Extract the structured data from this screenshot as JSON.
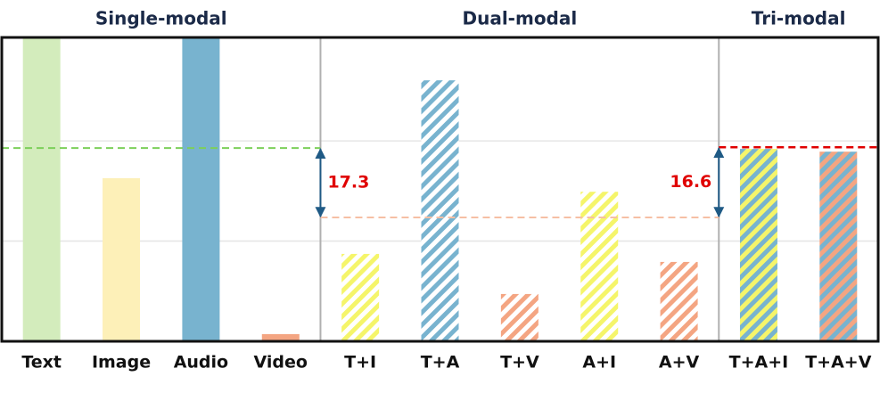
{
  "chart_data": {
    "type": "bar",
    "groups": [
      {
        "label": "Single-modal",
        "count": 4
      },
      {
        "label": "Dual-modal",
        "count": 5
      },
      {
        "label": "Tri-modal",
        "count": 2
      }
    ],
    "categories": [
      "Text",
      "Image",
      "Audio",
      "Video",
      "T+I",
      "T+A",
      "T+V",
      "A+I",
      "A+V",
      "T+A+I",
      "T+A+V"
    ],
    "values": [
      75.8,
      40.7,
      75.8,
      1.8,
      21.8,
      65.1,
      11.8,
      37.3,
      19.8,
      48.0,
      47.3
    ],
    "colors": [
      "#d3ecbc",
      "#fdf0b8",
      "#78b3cf",
      "#f4a582",
      "#ffffff",
      "#ffffff",
      "#ffffff",
      "#ffffff",
      "#ffffff",
      "#78b3cf",
      "#78b3cf"
    ],
    "stripe_colors": [
      null,
      null,
      null,
      null,
      "#f5f56a",
      "#78b3cf",
      "#f4a582",
      "#f5f56a",
      "#f4a582",
      "#f5f56a",
      "#f4a582"
    ],
    "ylim": [
      0,
      75.8
    ],
    "gridlines": [
      25,
      50
    ],
    "reference_lines": [
      {
        "value": 48.2,
        "color": "#7ccf5a",
        "group": 0
      },
      {
        "value": 30.9,
        "color": "#f6bfa4",
        "group": 1
      },
      {
        "value": 48.4,
        "color": "#e00000",
        "group": 2
      }
    ],
    "annotations": [
      {
        "label": "17.3",
        "between": [
          0,
          1
        ]
      },
      {
        "label": "16.6",
        "between": [
          2,
          1
        ]
      }
    ]
  }
}
